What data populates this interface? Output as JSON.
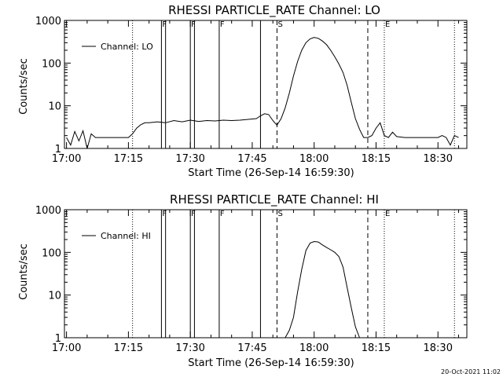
{
  "footer_timestamp": "20-Oct-2021 11:02",
  "colors": {
    "background": "#ffffff",
    "foreground": "#000000"
  },
  "chart_data": [
    {
      "type": "line",
      "title": "RHESSI PARTICLE_RATE Channel: LO",
      "xlabel": "Start Time (26-Sep-14 16:59:30)",
      "ylabel": "Counts/sec",
      "y_scale": "log",
      "ylim": [
        1,
        1000
      ],
      "xlim": [
        "16:59:30",
        "18:37:00"
      ],
      "x_tick_labels": [
        "17:00",
        "17:15",
        "17:30",
        "17:45",
        "18:00",
        "18:15",
        "18:30"
      ],
      "y_tick_labels": [
        "1",
        "10",
        "100",
        "1000"
      ],
      "legend": {
        "placement": "top-left",
        "label": "Channel: LO"
      },
      "markers": [
        {
          "label": "F",
          "time": "17:23",
          "style": "solid"
        },
        {
          "label": "F",
          "time": "17:30",
          "style": "solid"
        },
        {
          "label": "F",
          "time": "17:37",
          "style": "solid"
        },
        {
          "label": "S",
          "time": "17:51",
          "style": "dashed"
        },
        {
          "label": "E",
          "time": "18:17",
          "style": "dotted"
        }
      ],
      "vlines": [
        {
          "time": "17:16",
          "style": "dotted"
        },
        {
          "time": "17:24",
          "style": "solid"
        },
        {
          "time": "17:31",
          "style": "solid"
        },
        {
          "time": "17:47",
          "style": "solid"
        },
        {
          "time": "18:13",
          "style": "dashed"
        },
        {
          "time": "18:34",
          "style": "dotted"
        }
      ],
      "series": [
        {
          "time": [
            "17:00",
            "17:01",
            "17:02",
            "17:03",
            "17:04",
            "17:05",
            "17:06",
            "17:07",
            "17:08",
            "17:10",
            "17:12",
            "17:14",
            "17:15",
            "17:16",
            "17:17",
            "17:18",
            "17:19",
            "17:20",
            "17:22",
            "17:24",
            "17:26",
            "17:28",
            "17:30",
            "17:32",
            "17:34",
            "17:36",
            "17:38",
            "17:40",
            "17:42",
            "17:44",
            "17:46",
            "17:47",
            "17:48",
            "17:49",
            "17:50",
            "17:51",
            "17:52",
            "17:53",
            "17:54",
            "17:55",
            "17:56",
            "17:57",
            "17:58",
            "17:59",
            "18:00",
            "18:01",
            "18:02",
            "18:03",
            "18:04",
            "18:05",
            "18:06",
            "18:07",
            "18:08",
            "18:09",
            "18:10",
            "18:11",
            "18:12",
            "18:13",
            "18:14",
            "18:15",
            "18:16",
            "18:17",
            "18:18",
            "18:19",
            "18:20",
            "18:22",
            "18:24",
            "18:26",
            "18:28",
            "18:30",
            "18:31",
            "18:32",
            "18:33",
            "18:34",
            "18:35"
          ],
          "values": [
            1.8,
            1.2,
            2.5,
            1.5,
            2.6,
            1.0,
            2.2,
            1.8,
            1.8,
            1.8,
            1.8,
            1.8,
            1.8,
            2.2,
            3.0,
            3.6,
            4.0,
            4.0,
            4.2,
            4.0,
            4.5,
            4.2,
            4.6,
            4.3,
            4.5,
            4.4,
            4.6,
            4.5,
            4.6,
            4.8,
            5.0,
            5.8,
            6.5,
            6.2,
            4.5,
            3.5,
            5.0,
            9.0,
            20,
            50,
            110,
            200,
            300,
            370,
            400,
            380,
            330,
            270,
            200,
            140,
            95,
            60,
            30,
            12,
            5.0,
            2.8,
            1.8,
            1.8,
            2.0,
            3.0,
            4.0,
            2.0,
            1.8,
            2.4,
            1.9,
            1.8,
            1.8,
            1.8,
            1.8,
            1.8,
            2.0,
            1.8,
            1.2,
            2.0,
            1.8
          ]
        }
      ]
    },
    {
      "type": "line",
      "title": "RHESSI PARTICLE_RATE Channel: HI",
      "xlabel": "Start Time (26-Sep-14 16:59:30)",
      "ylabel": "Counts/sec",
      "y_scale": "log",
      "ylim": [
        1,
        1000
      ],
      "xlim": [
        "16:59:30",
        "18:37:00"
      ],
      "x_tick_labels": [
        "17:00",
        "17:15",
        "17:30",
        "17:45",
        "18:00",
        "18:15",
        "18:30"
      ],
      "y_tick_labels": [
        "1",
        "10",
        "100",
        "1000"
      ],
      "legend": {
        "placement": "top-left",
        "label": "Channel: HI"
      },
      "markers": [
        {
          "label": "F",
          "time": "17:23",
          "style": "solid"
        },
        {
          "label": "F",
          "time": "17:30",
          "style": "solid"
        },
        {
          "label": "F",
          "time": "17:37",
          "style": "solid"
        },
        {
          "label": "S",
          "time": "17:51",
          "style": "dashed"
        },
        {
          "label": "E",
          "time": "18:17",
          "style": "dotted"
        }
      ],
      "vlines": [
        {
          "time": "17:16",
          "style": "dotted"
        },
        {
          "time": "17:24",
          "style": "solid"
        },
        {
          "time": "17:31",
          "style": "solid"
        },
        {
          "time": "17:47",
          "style": "solid"
        },
        {
          "time": "18:13",
          "style": "dashed"
        },
        {
          "time": "18:34",
          "style": "dotted"
        }
      ],
      "series": [
        {
          "time": [
            "17:53",
            "17:54",
            "17:55",
            "17:56",
            "17:57",
            "17:58",
            "17:59",
            "18:00",
            "18:01",
            "18:02",
            "18:03",
            "18:04",
            "18:05",
            "18:06",
            "18:07",
            "18:08",
            "18:09",
            "18:10",
            "18:11"
          ],
          "values": [
            1.0,
            1.5,
            3.0,
            12,
            40,
            110,
            165,
            180,
            175,
            150,
            130,
            115,
            100,
            80,
            45,
            15,
            5.0,
            1.8,
            1.0
          ]
        }
      ]
    }
  ]
}
